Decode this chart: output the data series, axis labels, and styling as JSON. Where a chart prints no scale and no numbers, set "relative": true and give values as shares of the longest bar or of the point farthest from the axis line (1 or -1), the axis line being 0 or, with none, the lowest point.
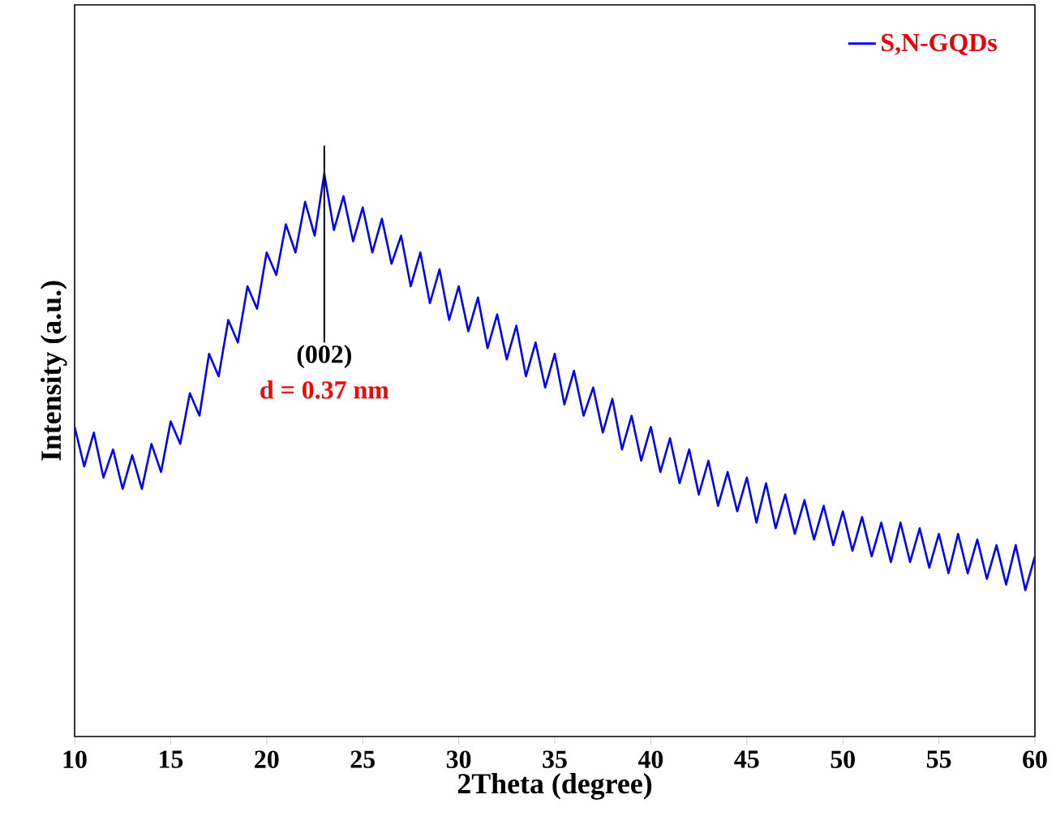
{
  "chart_data": {
    "type": "line",
    "relative": true,
    "xlabel": "2Theta (degree)",
    "ylabel": "Intensity (a.u.)",
    "xlim": [
      10,
      60
    ],
    "xticks": [
      10,
      15,
      20,
      25,
      30,
      35,
      40,
      45,
      50,
      55,
      60
    ],
    "tick_labels": "x",
    "legend": "top right",
    "marker": "none",
    "annotations": [
      "(002)",
      "d = 0.37 nm"
    ],
    "series": [
      {
        "name": "S,N-GQDs",
        "color": "#0000ff",
        "x": [
          10,
          10.5,
          11,
          11.5,
          12,
          12.5,
          13,
          13.5,
          14,
          14.5,
          15,
          15.5,
          16,
          16.5,
          17,
          17.5,
          18,
          18.5,
          19,
          19.5,
          20,
          20.5,
          21,
          21.5,
          22,
          22.5,
          23,
          23.5,
          24,
          24.5,
          25,
          25.5,
          26,
          26.5,
          27,
          27.5,
          28,
          28.5,
          29,
          29.5,
          30,
          30.5,
          31,
          31.5,
          32,
          32.5,
          33,
          33.5,
          34,
          34.5,
          35,
          35.5,
          36,
          36.5,
          37,
          37.5,
          38,
          38.5,
          39,
          39.5,
          40,
          40.5,
          41,
          41.5,
          42,
          42.5,
          43,
          43.5,
          44,
          44.5,
          45,
          45.5,
          46,
          46.5,
          47,
          47.5,
          48,
          48.5,
          49,
          49.5,
          50,
          50.5,
          51,
          51.5,
          52,
          52.5,
          53,
          53.5,
          54,
          54.5,
          55,
          55.5,
          56,
          56.5,
          57,
          57.5,
          58,
          58.5,
          59,
          59.5,
          60
        ],
        "values": [
          0.55,
          0.48,
          0.54,
          0.46,
          0.51,
          0.44,
          0.5,
          0.44,
          0.52,
          0.47,
          0.56,
          0.52,
          0.61,
          0.57,
          0.68,
          0.64,
          0.74,
          0.7,
          0.8,
          0.76,
          0.86,
          0.82,
          0.91,
          0.86,
          0.95,
          0.89,
          1.0,
          0.9,
          0.96,
          0.88,
          0.94,
          0.86,
          0.92,
          0.84,
          0.89,
          0.8,
          0.86,
          0.77,
          0.83,
          0.74,
          0.8,
          0.72,
          0.78,
          0.69,
          0.75,
          0.67,
          0.73,
          0.64,
          0.7,
          0.62,
          0.68,
          0.59,
          0.65,
          0.57,
          0.62,
          0.54,
          0.6,
          0.51,
          0.57,
          0.49,
          0.55,
          0.47,
          0.53,
          0.45,
          0.51,
          0.43,
          0.49,
          0.41,
          0.47,
          0.4,
          0.46,
          0.38,
          0.45,
          0.37,
          0.43,
          0.36,
          0.42,
          0.35,
          0.41,
          0.34,
          0.4,
          0.33,
          0.39,
          0.32,
          0.38,
          0.31,
          0.38,
          0.31,
          0.37,
          0.3,
          0.36,
          0.29,
          0.36,
          0.29,
          0.35,
          0.28,
          0.34,
          0.27,
          0.34,
          0.26,
          0.32
        ]
      }
    ]
  }
}
